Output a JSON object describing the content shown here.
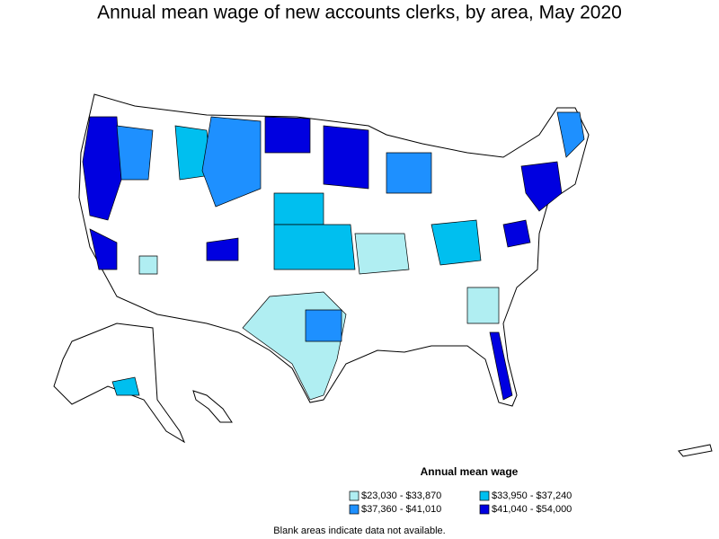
{
  "title": "Annual mean wage of new accounts clerks, by area, May 2020",
  "legend": {
    "title": "Annual mean wage",
    "items": [
      {
        "label": "$23,030 - $33,870",
        "color": "#b0eef2"
      },
      {
        "label": "$33,950 - $37,240",
        "color": "#00bfef"
      },
      {
        "label": "$37,360 - $41,010",
        "color": "#1e90ff"
      },
      {
        "label": "$41,040 - $54,000",
        "color": "#0000e0"
      }
    ]
  },
  "note": "Blank areas indicate data not available."
}
